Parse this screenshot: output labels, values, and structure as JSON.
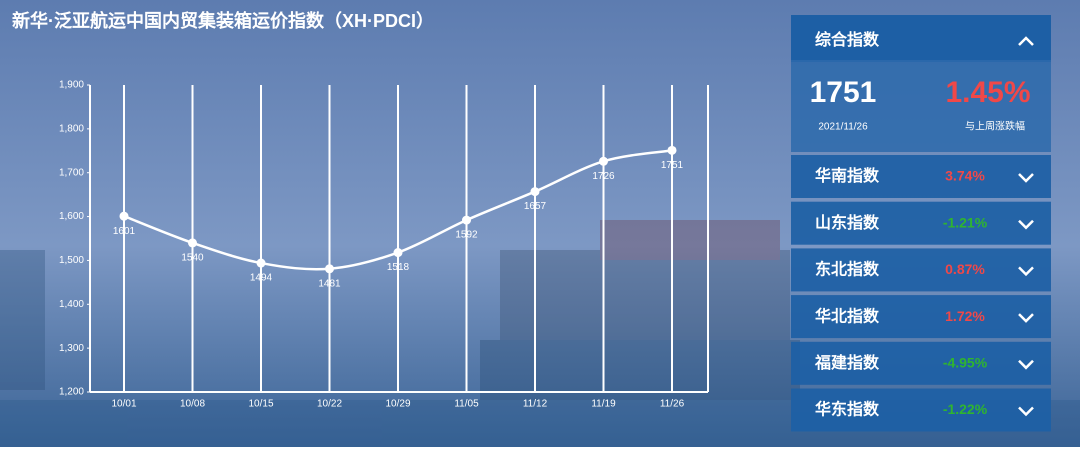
{
  "chart_data": {
    "type": "line",
    "title": "新华·泛亚航运中国内贸集装箱运价指数（XH·PDCI）",
    "categories": [
      "10/01",
      "10/08",
      "10/15",
      "10/22",
      "10/29",
      "11/05",
      "11/12",
      "11/19",
      "11/26"
    ],
    "values": [
      1601,
      1540,
      1494,
      1481,
      1518,
      1592,
      1657,
      1726,
      1751
    ],
    "color": "#ffffff",
    "ylim": [
      1200,
      1900
    ],
    "yticks": [
      {
        "value": 1200,
        "label": "1,200"
      },
      {
        "value": 1300,
        "label": "1,300"
      },
      {
        "value": 1400,
        "label": "1,400"
      },
      {
        "value": 1500,
        "label": "1,500"
      },
      {
        "value": 1600,
        "label": "1,600"
      },
      {
        "value": 1700,
        "label": "1,700"
      },
      {
        "value": 1800,
        "label": "1,800"
      },
      {
        "value": 1900,
        "label": "1,900"
      }
    ]
  },
  "panel": {
    "header": "综合指数",
    "main": {
      "value": "1751",
      "date": "2021/11/26",
      "change": "1.45%",
      "change_label": "与上周涨跌幅",
      "color": "#f04848"
    },
    "items": [
      {
        "name": "华南指数",
        "change": "3.74%",
        "color": "#f04848"
      },
      {
        "name": "山东指数",
        "change": "-1.21%",
        "color": "#2fb52f"
      },
      {
        "name": "东北指数",
        "change": "0.87%",
        "color": "#f04848"
      },
      {
        "name": "华北指数",
        "change": "1.72%",
        "color": "#f04848"
      },
      {
        "name": "福建指数",
        "change": "-4.95%",
        "color": "#2fb52f"
      },
      {
        "name": "华东指数",
        "change": "-1.22%",
        "color": "#2fb52f"
      }
    ]
  }
}
